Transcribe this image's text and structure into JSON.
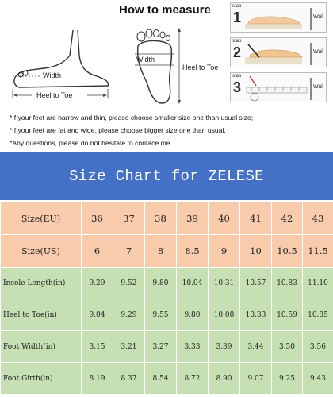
{
  "guide": {
    "title": "How to measure",
    "side_labels": {
      "width": "Width",
      "heel_to_toe": "Heel to Toe"
    },
    "sole_labels": {
      "width": "Width",
      "heel_to_toe": "Heel to Toe"
    },
    "steps": [
      {
        "tag": "stap",
        "number": "1",
        "wall": "Wall"
      },
      {
        "tag": "stap",
        "number": "2",
        "wall": "Wall"
      },
      {
        "tag": "stap",
        "number": "3",
        "wall": "Wall"
      }
    ],
    "notes": [
      "*If your feet are narrow and thin, please choose smaller size one than usual size;",
      "*If your feet are fat and wide, please choose bigger size one than usual.",
      "*Any questions, please do not hesitate to contace me."
    ]
  },
  "chart": {
    "title": "Size Chart for ZELESE",
    "colors": {
      "banner": "#4471c6",
      "peach": "#f8cbad",
      "green": "#c6e0b4"
    },
    "rows": [
      {
        "label": "Size(EU)",
        "values": [
          "36",
          "37",
          "38",
          "39",
          "40",
          "41",
          "42",
          "43"
        ],
        "style": "peach"
      },
      {
        "label": "Size(US)",
        "values": [
          "6",
          "7",
          "8",
          "8.5",
          "9",
          "10",
          "10.5",
          "11.5"
        ],
        "style": "peach"
      },
      {
        "label": "Insole Length(in)",
        "values": [
          "9.29",
          "9.52",
          "9.80",
          "10.04",
          "10.31",
          "10.57",
          "10.83",
          "11.10"
        ],
        "style": "green"
      },
      {
        "label": "Heel to Toe(in)",
        "values": [
          "9.04",
          "9.29",
          "9.55",
          "9.80",
          "10.08",
          "10.33",
          "10.59",
          "10.85"
        ],
        "style": "green"
      },
      {
        "label": "Foot Width(in)",
        "values": [
          "3.15",
          "3.21",
          "3.27",
          "3.33",
          "3.39",
          "3.44",
          "3.50",
          "3.56"
        ],
        "style": "green"
      },
      {
        "label": "Foot Girth(in)",
        "values": [
          "8.19",
          "8.37",
          "8.54",
          "8.72",
          "8.90",
          "9.07",
          "9.25",
          "9.43"
        ],
        "style": "green"
      }
    ]
  }
}
